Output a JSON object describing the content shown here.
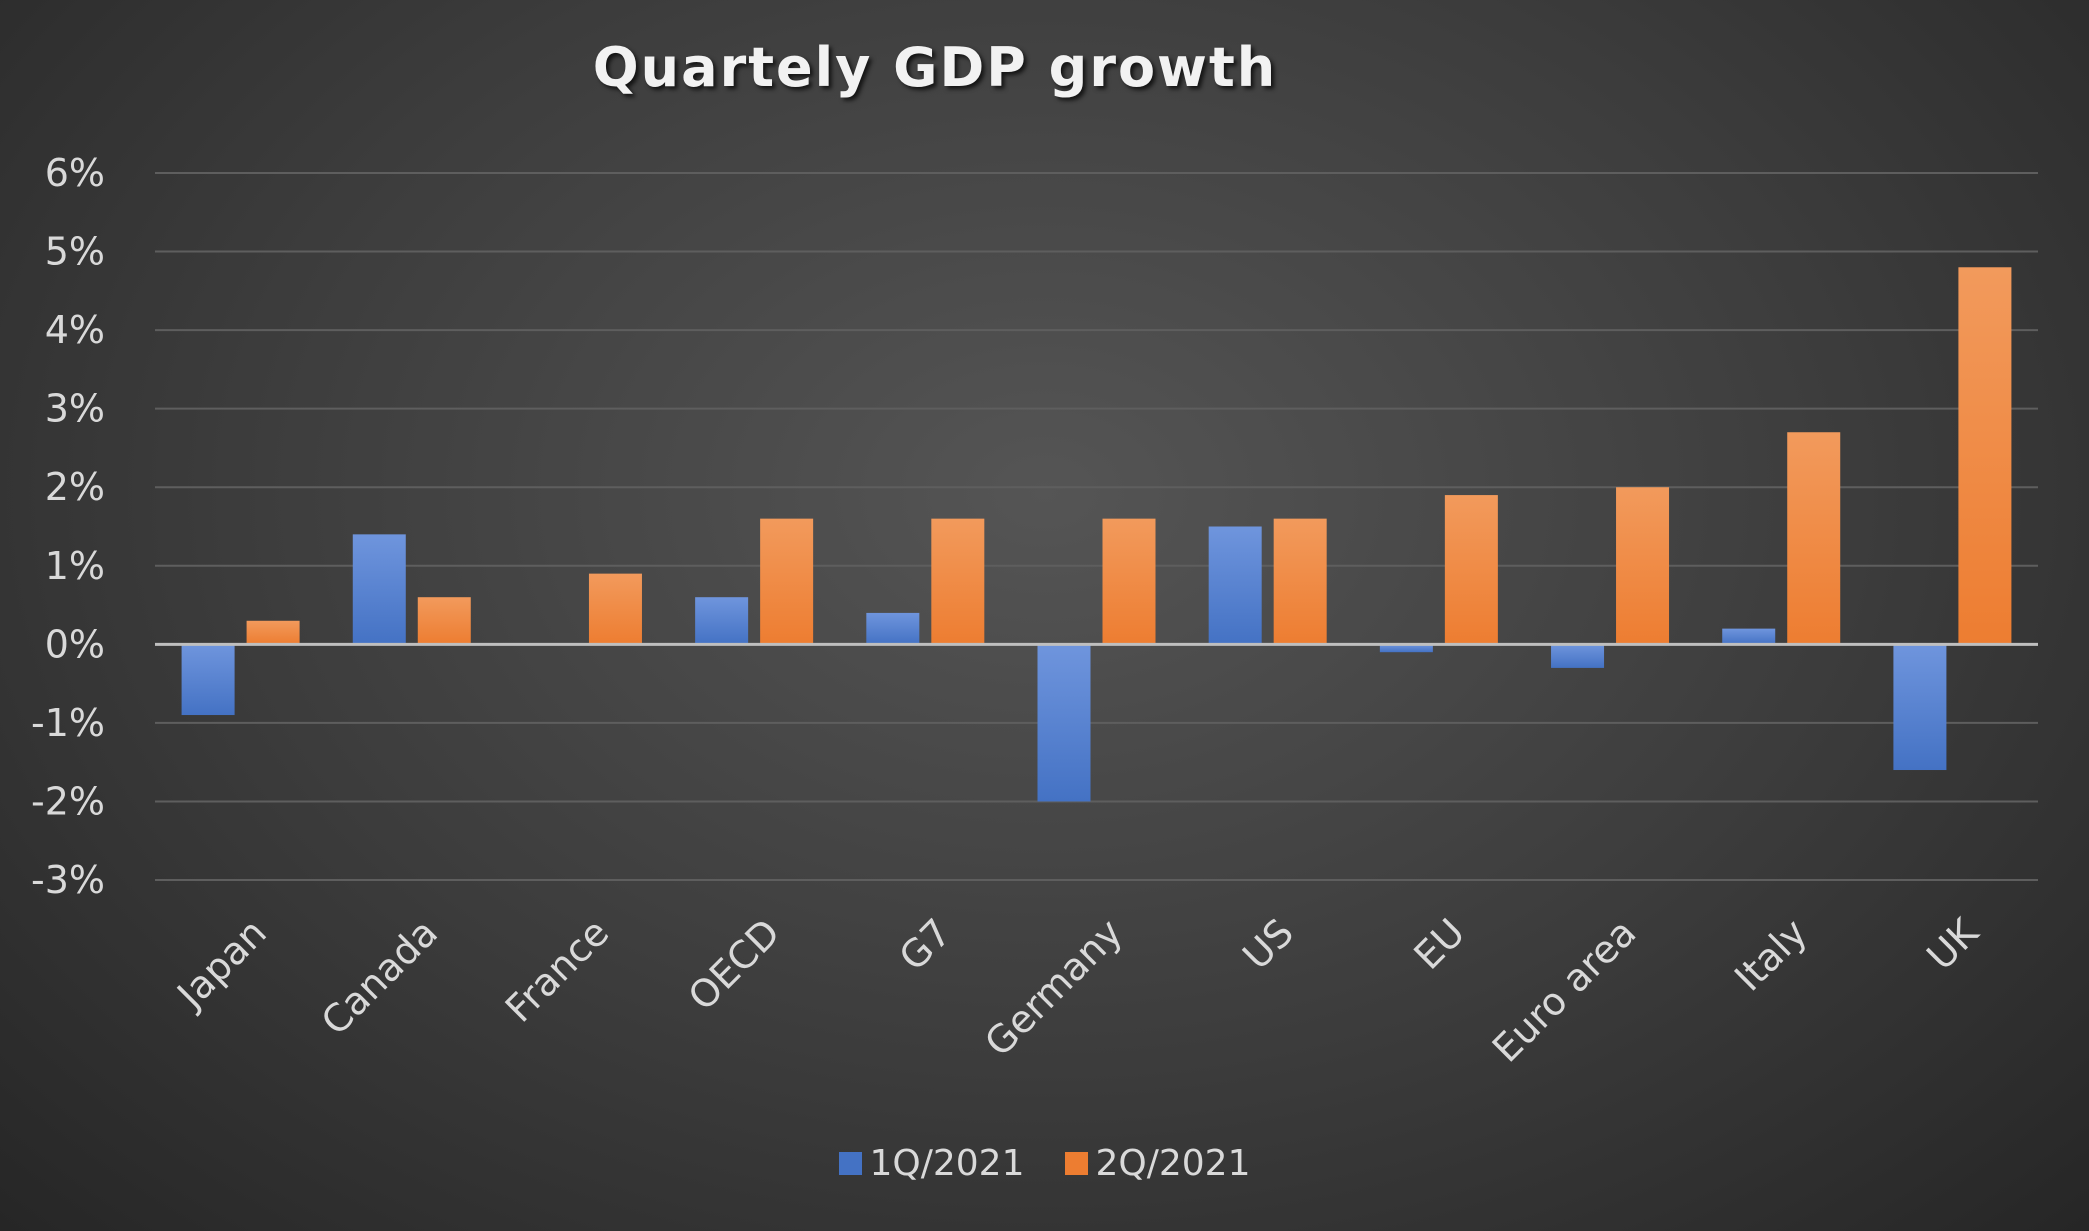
{
  "chart_data": {
    "type": "bar",
    "title": "Quartely GDP growth",
    "categories": [
      "Japan",
      "Canada",
      "France",
      "OECD",
      "G7",
      "Germany",
      "US",
      "EU",
      "Euro area",
      "Italy",
      "UK"
    ],
    "series": [
      {
        "name": "1Q/2021",
        "color": "#4472c4",
        "values": [
          -0.9,
          1.4,
          0.0,
          0.6,
          0.4,
          -2.0,
          1.5,
          -0.1,
          -0.3,
          0.2,
          -1.6
        ]
      },
      {
        "name": "2Q/2021",
        "color": "#ed7d31",
        "values": [
          0.3,
          0.6,
          0.9,
          1.6,
          1.6,
          1.6,
          1.6,
          1.9,
          2.0,
          2.7,
          4.8
        ]
      }
    ],
    "ylim": [
      -3,
      6
    ],
    "yticks": [
      6,
      5,
      4,
      3,
      2,
      1,
      0,
      -1,
      -2,
      -3
    ],
    "ytick_labels": [
      "6%",
      "5%",
      "4%",
      "3%",
      "2%",
      "1%",
      "0%",
      "-1%",
      "-2%",
      "-3%"
    ],
    "grid": true,
    "legend": "bottom"
  }
}
